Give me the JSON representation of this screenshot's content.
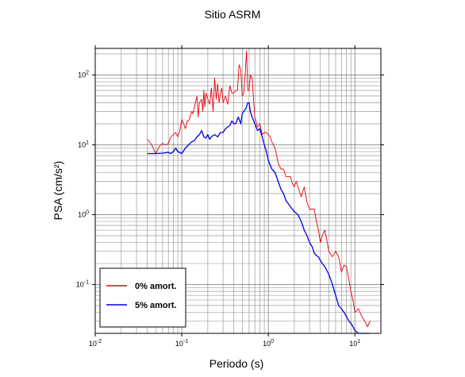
{
  "chart_data": {
    "type": "line",
    "title": "Sitio ASRM",
    "xlabel": "Periodo (s)",
    "ylabel": "PSA (cm/s²)",
    "xscale": "log",
    "yscale": "log",
    "xlim": [
      0.01,
      20
    ],
    "ylim": [
      0.02,
      240
    ],
    "xticks": [
      {
        "mant": "10",
        "exp": "-2",
        "value": 0.01
      },
      {
        "mant": "10",
        "exp": "-1",
        "value": 0.1
      },
      {
        "mant": "10",
        "exp": "0",
        "value": 1
      },
      {
        "mant": "10",
        "exp": "1",
        "value": 10
      }
    ],
    "yticks": [
      {
        "mant": "10",
        "exp": "-1",
        "value": 0.1
      },
      {
        "mant": "10",
        "exp": "0",
        "value": 1
      },
      {
        "mant": "10",
        "exp": "1",
        "value": 10
      },
      {
        "mant": "10",
        "exp": "2",
        "value": 100
      }
    ],
    "grid": true,
    "legend_position": "bottom-left",
    "series": [
      {
        "name": "0% amort.",
        "color": "#e8000b",
        "x": [
          0.04,
          0.045,
          0.05,
          0.055,
          0.06,
          0.065,
          0.07,
          0.075,
          0.08,
          0.085,
          0.09,
          0.095,
          0.1,
          0.105,
          0.11,
          0.115,
          0.12,
          0.125,
          0.13,
          0.135,
          0.14,
          0.15,
          0.155,
          0.16,
          0.17,
          0.175,
          0.18,
          0.185,
          0.19,
          0.2,
          0.21,
          0.22,
          0.23,
          0.24,
          0.25,
          0.26,
          0.27,
          0.28,
          0.29,
          0.3,
          0.32,
          0.34,
          0.36,
          0.38,
          0.4,
          0.42,
          0.44,
          0.46,
          0.48,
          0.5,
          0.52,
          0.54,
          0.56,
          0.58,
          0.6,
          0.62,
          0.65,
          0.68,
          0.7,
          0.75,
          0.8,
          0.85,
          0.9,
          0.95,
          1.0,
          1.05,
          1.1,
          1.2,
          1.3,
          1.4,
          1.5,
          1.6,
          1.7,
          1.8,
          1.9,
          2.0,
          2.1,
          2.2,
          2.4,
          2.6,
          2.8,
          3.0,
          3.2,
          3.4,
          3.6,
          3.8,
          4.0,
          4.2,
          4.5,
          4.8,
          5.0,
          5.5,
          6.0,
          6.5,
          7.0,
          7.5,
          8.0,
          8.5,
          9.0,
          9.5,
          10.0,
          11.0,
          12.0,
          13.0,
          14.0,
          15.0
        ],
        "y": [
          12,
          10,
          7.5,
          9.5,
          10.5,
          10,
          10.5,
          13,
          14,
          15,
          13,
          16,
          23,
          20,
          17,
          22,
          22,
          25,
          30,
          28,
          35,
          50,
          25,
          40,
          45,
          30,
          60,
          35,
          55,
          45,
          38,
          65,
          30,
          90,
          45,
          75,
          40,
          55,
          65,
          40,
          50,
          38,
          70,
          55,
          55,
          60,
          60,
          140,
          120,
          50,
          55,
          100,
          220,
          60,
          60,
          100,
          90,
          40,
          25,
          18,
          20,
          14,
          15,
          15,
          14,
          13,
          11,
          9,
          5.5,
          4.5,
          4.5,
          3.5,
          3.5,
          3.5,
          2.8,
          2.5,
          3,
          2.5,
          1.8,
          2.5,
          1.5,
          1.2,
          1.2,
          1.2,
          0.8,
          0.6,
          0.4,
          0.5,
          0.6,
          0.4,
          0.3,
          0.25,
          0.3,
          0.25,
          0.15,
          0.19,
          0.18,
          0.12,
          0.08,
          0.06,
          0.04,
          0.045,
          0.035,
          0.03,
          0.025,
          0.03
        ]
      },
      {
        "name": "5% amort.",
        "color": "#0000e0",
        "x": [
          0.04,
          0.05,
          0.06,
          0.07,
          0.075,
          0.08,
          0.085,
          0.09,
          0.1,
          0.11,
          0.12,
          0.13,
          0.14,
          0.15,
          0.16,
          0.17,
          0.18,
          0.19,
          0.2,
          0.21,
          0.22,
          0.24,
          0.26,
          0.28,
          0.3,
          0.32,
          0.34,
          0.36,
          0.38,
          0.4,
          0.42,
          0.45,
          0.48,
          0.5,
          0.52,
          0.55,
          0.58,
          0.6,
          0.62,
          0.65,
          0.7,
          0.75,
          0.8,
          0.85,
          0.9,
          0.95,
          1.0,
          1.1,
          1.2,
          1.3,
          1.4,
          1.5,
          1.6,
          1.8,
          2.0,
          2.2,
          2.4,
          2.6,
          2.8,
          3.0,
          3.2,
          3.4,
          3.6,
          3.8,
          4.0,
          4.2,
          4.5,
          5.0,
          5.5,
          6.0,
          6.5,
          7.0,
          7.5,
          8.0,
          8.5,
          9.0,
          9.5,
          10.0,
          11.0,
          12.0,
          13.0,
          14.0,
          15.0
        ],
        "y": [
          7.5,
          7.5,
          7.6,
          7.8,
          7.5,
          8,
          9,
          8,
          7.5,
          9,
          10,
          11,
          11.5,
          13,
          14,
          16,
          13,
          12.5,
          14,
          12,
          13,
          14,
          13,
          15,
          15,
          17,
          18,
          19,
          22,
          20,
          20,
          25,
          20,
          28,
          30,
          33,
          40,
          40,
          30,
          25,
          20,
          16,
          17,
          13,
          10,
          8,
          6,
          4.5,
          4,
          3,
          2.3,
          2,
          1.6,
          1.3,
          1.1,
          1.0,
          0.8,
          0.6,
          0.5,
          0.4,
          0.35,
          0.28,
          0.26,
          0.25,
          0.22,
          0.2,
          0.18,
          0.14,
          0.1,
          0.07,
          0.05,
          0.045,
          0.04,
          0.035,
          0.03,
          0.028,
          0.025,
          0.022,
          0.02,
          0.02,
          0.02,
          0.02,
          0.02
        ]
      }
    ]
  }
}
